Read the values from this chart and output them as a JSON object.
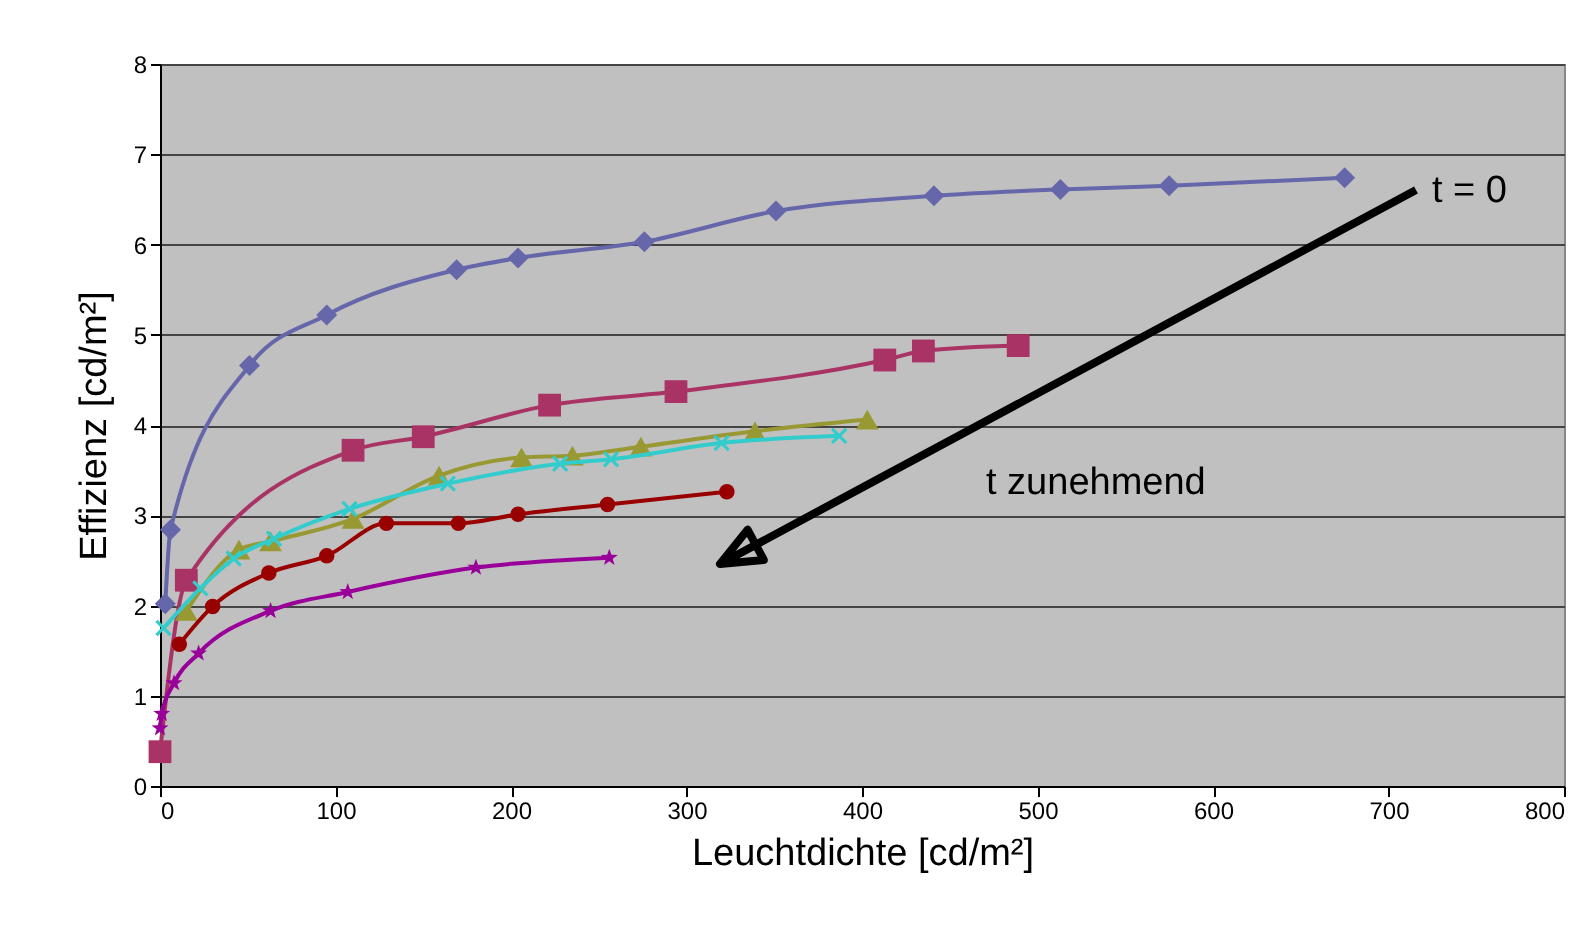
{
  "chart_data": {
    "type": "line",
    "xlabel": "Leuchtdichte [cd/m²]",
    "ylabel": "Effizienz [cd/m²]",
    "xlim": [
      0,
      800
    ],
    "xticks": [
      0,
      100,
      200,
      300,
      400,
      500,
      600,
      700,
      800
    ],
    "ylim": [
      0,
      8
    ],
    "yticks": [
      0,
      1,
      2,
      3,
      4,
      5,
      6,
      7,
      8
    ],
    "grid": "y",
    "annotations": [
      "t = 0",
      "t zunehmend"
    ],
    "series": [
      {
        "color": "#6666aa",
        "marker": "diamond",
        "x": [
          3,
          6,
          51,
          95,
          169,
          204,
          276,
          351,
          441,
          513,
          575,
          675
        ],
        "values": [
          2.02,
          2.84,
          4.66,
          5.22,
          5.72,
          5.85,
          6.03,
          6.37,
          6.54,
          6.61,
          6.65,
          6.74
        ]
      },
      {
        "color": "#aa3366",
        "marker": "square",
        "x": [
          0,
          15,
          110,
          150,
          222,
          294,
          413,
          435,
          489
        ],
        "values": [
          0.38,
          2.28,
          3.72,
          3.87,
          4.22,
          4.37,
          4.72,
          4.82,
          4.88
        ]
      },
      {
        "color": "#999933",
        "marker": "triangle",
        "x": [
          15,
          45,
          63,
          110,
          159,
          206,
          235,
          274,
          339,
          403
        ],
        "values": [
          1.94,
          2.62,
          2.71,
          2.96,
          3.44,
          3.64,
          3.66,
          3.76,
          3.93,
          4.06
        ]
      },
      {
        "color": "#33cccc",
        "marker": "cross",
        "x": [
          2,
          23,
          42,
          65,
          108,
          164,
          228,
          257,
          320,
          387
        ],
        "values": [
          1.75,
          2.19,
          2.52,
          2.74,
          3.07,
          3.35,
          3.57,
          3.62,
          3.8,
          3.88
        ]
      },
      {
        "color": "#990000",
        "marker": "circle",
        "x": [
          11,
          30,
          62,
          95,
          129,
          170,
          204,
          255,
          323
        ],
        "values": [
          1.57,
          1.99,
          2.36,
          2.55,
          2.91,
          2.91,
          3.01,
          3.12,
          3.26
        ]
      },
      {
        "color": "#990099",
        "marker": "star",
        "x": [
          0,
          1,
          8,
          22,
          63,
          107,
          180,
          256
        ],
        "values": [
          0.64,
          0.8,
          1.14,
          1.47,
          1.94,
          2.15,
          2.42,
          2.53
        ]
      }
    ]
  }
}
